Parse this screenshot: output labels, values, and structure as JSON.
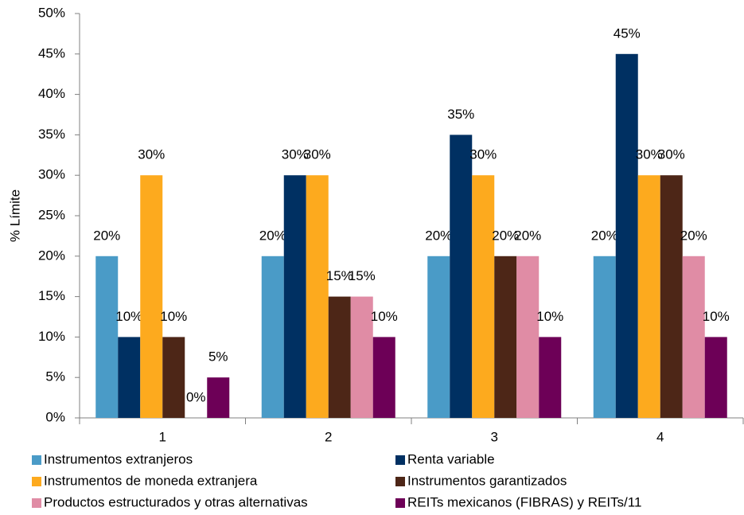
{
  "chart_data": {
    "type": "bar",
    "y_label": "% Límite",
    "categories": [
      "1",
      "2",
      "3",
      "4"
    ],
    "ylim": [
      0,
      50
    ],
    "yticks": [
      {
        "value": 0,
        "label": "0%"
      },
      {
        "value": 5,
        "label": "5%"
      },
      {
        "value": 10,
        "label": "10%"
      },
      {
        "value": 15,
        "label": "15%"
      },
      {
        "value": 20,
        "label": "20%"
      },
      {
        "value": 25,
        "label": "25%"
      },
      {
        "value": 30,
        "label": "30%"
      },
      {
        "value": 35,
        "label": "35%"
      },
      {
        "value": 40,
        "label": "40%"
      },
      {
        "value": 45,
        "label": "45%"
      },
      {
        "value": 50,
        "label": "50%"
      }
    ],
    "grid": false,
    "series": [
      {
        "name": "Instrumentos extranjeros",
        "color": "#4a9bc7",
        "values": [
          20,
          20,
          20,
          20
        ],
        "value_labels": [
          "20%",
          "20%",
          "20%",
          "20%"
        ]
      },
      {
        "name": "Renta variable",
        "color": "#003062",
        "values": [
          10,
          30,
          35,
          45
        ],
        "value_labels": [
          "10%",
          "30%",
          "35%",
          "45%"
        ]
      },
      {
        "name": "Instrumentos de moneda extranjera",
        "color": "#fdaa1e",
        "values": [
          30,
          30,
          30,
          30
        ],
        "value_labels": [
          "30%",
          "30%",
          "30%",
          "30%"
        ]
      },
      {
        "name": "Instrumentos garantizados",
        "color": "#4d2617",
        "values": [
          10,
          15,
          20,
          30
        ],
        "value_labels": [
          "10%",
          "15%",
          "20%",
          "30%"
        ]
      },
      {
        "name": "Productos estructurados y otras alternativas",
        "color": "#e08ca5",
        "values": [
          0,
          15,
          20,
          20
        ],
        "value_labels": [
          "0%",
          "15%",
          "20%",
          "20%"
        ]
      },
      {
        "name": "REITs mexicanos (FIBRAS) y REITs/11",
        "color": "#6d0057",
        "values": [
          5,
          10,
          10,
          10
        ],
        "value_labels": [
          "5%",
          "10%",
          "10%",
          "10%"
        ]
      }
    ]
  }
}
